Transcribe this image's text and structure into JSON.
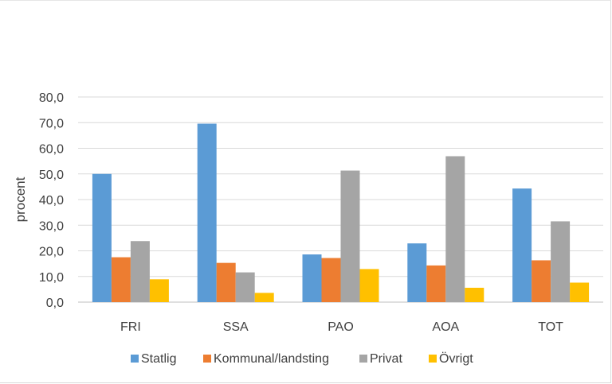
{
  "chart_data": {
    "type": "bar",
    "title": "",
    "xlabel": "",
    "ylabel": "procent",
    "ylim": [
      0,
      80
    ],
    "yticks": [
      "0,0",
      "10,0",
      "20,0",
      "30,0",
      "40,0",
      "50,0",
      "60,0",
      "70,0",
      "80,0"
    ],
    "categories": [
      "FRI",
      "SSA",
      "PAO",
      "AOA",
      "TOT"
    ],
    "series": [
      {
        "name": "Statlig",
        "color": "#5b9bd5",
        "values": [
          50.0,
          69.6,
          18.6,
          22.9,
          44.3
        ]
      },
      {
        "name": "Kommunal/landsting",
        "color": "#ed7d31",
        "values": [
          17.5,
          15.3,
          17.2,
          14.3,
          16.3
        ]
      },
      {
        "name": "Privat",
        "color": "#a5a5a5",
        "values": [
          23.8,
          11.6,
          51.3,
          56.9,
          31.5
        ]
      },
      {
        "name": "Övrigt",
        "color": "#ffc000",
        "values": [
          8.9,
          3.6,
          12.9,
          5.6,
          7.6
        ]
      }
    ],
    "grid": true,
    "legend_position": "bottom"
  }
}
